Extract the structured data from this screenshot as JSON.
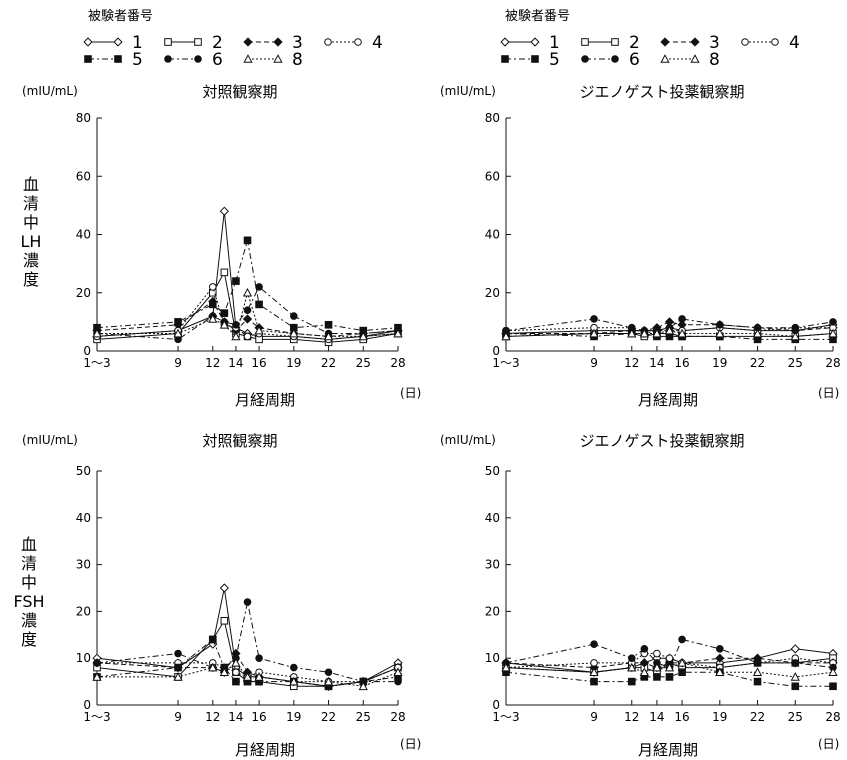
{
  "legends": [
    {
      "title": "被験者番号",
      "entries": [
        {
          "label": "1",
          "marker": "diamond-open"
        },
        {
          "label": "2",
          "marker": "square-open"
        },
        {
          "label": "3",
          "marker": "diamond-filled"
        },
        {
          "label": "4",
          "marker": "circle-open"
        },
        {
          "label": "5",
          "marker": "square-filled"
        },
        {
          "label": "6",
          "marker": "circle-filled"
        },
        {
          "label": "8",
          "marker": "triangle-open"
        }
      ]
    },
    {
      "title": "被験者番号",
      "entries": [
        {
          "label": "1",
          "marker": "diamond-open"
        },
        {
          "label": "2",
          "marker": "square-open"
        },
        {
          "label": "3",
          "marker": "diamond-filled"
        },
        {
          "label": "4",
          "marker": "circle-open"
        },
        {
          "label": "5",
          "marker": "square-filled"
        },
        {
          "label": "6",
          "marker": "circle-filled"
        },
        {
          "label": "8",
          "marker": "triangle-open"
        }
      ]
    }
  ],
  "y_axis_labels": {
    "lh": "血清中LH濃度",
    "fsh": "血清中FSH濃度"
  },
  "chart_data": [
    {
      "type": "line",
      "title": "対照観察期",
      "unit": "(mIU/mL)",
      "xlabel": "月経周期",
      "xunit": "(日)",
      "x_tick_labels": [
        "1〜3",
        "9",
        "12",
        "14",
        "16",
        "19",
        "22",
        "25",
        "28"
      ],
      "x_tick_values": [
        2,
        9,
        12,
        14,
        16,
        19,
        22,
        25,
        28
      ],
      "ylim": [
        0,
        80
      ],
      "y_ticks": [
        0,
        20,
        40,
        60,
        80
      ],
      "series": [
        {
          "name": "1",
          "x": [
            2,
            9,
            12,
            13,
            14,
            15,
            16,
            19,
            22,
            25,
            28
          ],
          "values": [
            5,
            7,
            12,
            48,
            8,
            6,
            5,
            5,
            4,
            5,
            7
          ]
        },
        {
          "name": "2",
          "x": [
            2,
            9,
            12,
            13,
            14,
            15,
            16,
            19,
            22,
            25,
            28
          ],
          "values": [
            4,
            6,
            20,
            27,
            6,
            5,
            4,
            4,
            3,
            4,
            6
          ]
        },
        {
          "name": "3",
          "x": [
            2,
            9,
            12,
            13,
            14,
            15,
            16,
            19,
            22,
            25,
            28
          ],
          "values": [
            7,
            9,
            17,
            10,
            7,
            11,
            8,
            6,
            5,
            6,
            7
          ]
        },
        {
          "name": "4",
          "x": [
            2,
            9,
            12,
            13,
            14,
            15,
            16,
            19,
            22,
            25,
            28
          ],
          "values": [
            5,
            7,
            22,
            9,
            8,
            5,
            6,
            5,
            4,
            5,
            6
          ]
        },
        {
          "name": "5",
          "x": [
            2,
            9,
            12,
            13,
            14,
            15,
            16,
            19,
            22,
            25,
            28
          ],
          "values": [
            8,
            10,
            16,
            13,
            24,
            38,
            16,
            8,
            9,
            7,
            8
          ]
        },
        {
          "name": "6",
          "x": [
            2,
            9,
            12,
            13,
            14,
            15,
            16,
            19,
            22,
            25,
            28
          ],
          "values": [
            6,
            4,
            12,
            10,
            9,
            14,
            22,
            12,
            6,
            6,
            7
          ]
        },
        {
          "name": "8",
          "x": [
            2,
            9,
            12,
            13,
            14,
            15,
            16,
            19,
            22,
            25,
            28
          ],
          "values": [
            6,
            6,
            11,
            9,
            5,
            20,
            7,
            6,
            5,
            5,
            6
          ]
        }
      ]
    },
    {
      "type": "line",
      "title": "ジエノゲスト投薬観察期",
      "unit": "(mIU/mL)",
      "xlabel": "月経周期",
      "xunit": "(日)",
      "x_tick_labels": [
        "1〜3",
        "9",
        "12",
        "14",
        "16",
        "19",
        "22",
        "25",
        "28"
      ],
      "x_tick_values": [
        2,
        9,
        12,
        14,
        16,
        19,
        22,
        25,
        28
      ],
      "ylim": [
        0,
        80
      ],
      "y_ticks": [
        0,
        20,
        40,
        60,
        80
      ],
      "series": [
        {
          "name": "1",
          "x": [
            2,
            9,
            12,
            13,
            14,
            15,
            16,
            19,
            22,
            25,
            28
          ],
          "values": [
            6,
            7,
            7,
            7,
            7,
            8,
            7,
            8,
            7,
            7,
            9
          ]
        },
        {
          "name": "2",
          "x": [
            2,
            9,
            12,
            13,
            14,
            15,
            16,
            19,
            22,
            25,
            28
          ],
          "values": [
            5,
            6,
            6,
            5,
            6,
            6,
            5,
            5,
            5,
            5,
            6
          ]
        },
        {
          "name": "3",
          "x": [
            2,
            9,
            12,
            13,
            14,
            15,
            16,
            19,
            22,
            25,
            28
          ],
          "values": [
            6,
            6,
            7,
            7,
            8,
            10,
            9,
            9,
            8,
            7,
            8
          ]
        },
        {
          "name": "4",
          "x": [
            2,
            9,
            12,
            13,
            14,
            15,
            16,
            19,
            22,
            25,
            28
          ],
          "values": [
            7,
            8,
            8,
            6,
            7,
            7,
            7,
            8,
            7,
            8,
            8
          ]
        },
        {
          "name": "5",
          "x": [
            2,
            9,
            12,
            13,
            14,
            15,
            16,
            19,
            22,
            25,
            28
          ],
          "values": [
            6,
            5,
            6,
            6,
            5,
            5,
            5,
            5,
            4,
            4,
            4
          ]
        },
        {
          "name": "6",
          "x": [
            2,
            9,
            12,
            13,
            14,
            15,
            16,
            19,
            22,
            25,
            28
          ],
          "values": [
            7,
            11,
            8,
            7,
            7,
            8,
            11,
            9,
            8,
            8,
            10
          ]
        },
        {
          "name": "8",
          "x": [
            2,
            9,
            12,
            13,
            14,
            15,
            16,
            19,
            22,
            25,
            28
          ],
          "values": [
            5,
            6,
            6,
            6,
            6,
            7,
            6,
            6,
            6,
            5,
            6
          ]
        }
      ]
    },
    {
      "type": "line",
      "title": "対照観察期",
      "unit": "(mIU/mL)",
      "xlabel": "月経周期",
      "xunit": "(日)",
      "x_tick_labels": [
        "1〜3",
        "9",
        "12",
        "14",
        "16",
        "19",
        "22",
        "25",
        "28"
      ],
      "x_tick_values": [
        2,
        9,
        12,
        14,
        16,
        19,
        22,
        25,
        28
      ],
      "ylim": [
        0,
        50
      ],
      "y_ticks": [
        0,
        10,
        20,
        30,
        40,
        50
      ],
      "series": [
        {
          "name": "1",
          "x": [
            2,
            9,
            12,
            13,
            14,
            15,
            16,
            19,
            22,
            25,
            28
          ],
          "values": [
            10,
            8,
            13,
            25,
            8,
            6,
            6,
            5,
            4,
            5,
            9
          ]
        },
        {
          "name": "2",
          "x": [
            2,
            9,
            12,
            13,
            14,
            15,
            16,
            19,
            22,
            25,
            28
          ],
          "values": [
            8,
            6,
            14,
            18,
            7,
            5,
            5,
            4,
            4,
            5,
            8
          ]
        },
        {
          "name": "3",
          "x": [
            2,
            9,
            12,
            13,
            14,
            15,
            16,
            19,
            22,
            25,
            28
          ],
          "values": [
            9,
            8,
            8,
            7,
            11,
            7,
            6,
            5,
            4,
            5,
            8
          ]
        },
        {
          "name": "4",
          "x": [
            2,
            9,
            12,
            13,
            14,
            15,
            16,
            19,
            22,
            25,
            28
          ],
          "values": [
            9,
            9,
            9,
            8,
            7,
            6,
            7,
            6,
            5,
            5,
            8
          ]
        },
        {
          "name": "5",
          "x": [
            2,
            9,
            12,
            13,
            14,
            15,
            16,
            19,
            22,
            25,
            28
          ],
          "values": [
            6,
            8,
            14,
            8,
            5,
            5,
            5,
            5,
            4,
            5,
            6
          ]
        },
        {
          "name": "6",
          "x": [
            2,
            9,
            12,
            13,
            14,
            15,
            16,
            19,
            22,
            25,
            28
          ],
          "values": [
            9,
            11,
            8,
            8,
            10,
            22,
            10,
            8,
            7,
            5,
            5
          ]
        },
        {
          "name": "8",
          "x": [
            2,
            9,
            12,
            13,
            14,
            15,
            16,
            19,
            22,
            25,
            28
          ],
          "values": [
            6,
            6,
            8,
            7,
            9,
            6,
            6,
            5,
            5,
            4,
            7
          ]
        }
      ]
    },
    {
      "type": "line",
      "title": "ジエノゲスト投薬観察期",
      "unit": "(mIU/mL)",
      "xlabel": "月経周期",
      "xunit": "(日)",
      "x_tick_labels": [
        "1〜3",
        "9",
        "12",
        "14",
        "16",
        "19",
        "22",
        "25",
        "28"
      ],
      "x_tick_values": [
        2,
        9,
        12,
        14,
        16,
        19,
        22,
        25,
        28
      ],
      "ylim": [
        0,
        50
      ],
      "y_ticks": [
        0,
        10,
        20,
        30,
        40,
        50
      ],
      "series": [
        {
          "name": "1",
          "x": [
            2,
            9,
            12,
            13,
            14,
            15,
            16,
            19,
            22,
            25,
            28
          ],
          "values": [
            9,
            7,
            8,
            9,
            10,
            10,
            9,
            9,
            10,
            12,
            11
          ]
        },
        {
          "name": "2",
          "x": [
            2,
            9,
            12,
            13,
            14,
            15,
            16,
            19,
            22,
            25,
            28
          ],
          "values": [
            8,
            7,
            8,
            8,
            7,
            9,
            8,
            8,
            9,
            9,
            10
          ]
        },
        {
          "name": "3",
          "x": [
            2,
            9,
            12,
            13,
            14,
            15,
            16,
            19,
            22,
            25,
            28
          ],
          "values": [
            9,
            8,
            9,
            9,
            8,
            9,
            9,
            10,
            10,
            9,
            9
          ]
        },
        {
          "name": "4",
          "x": [
            2,
            9,
            12,
            13,
            14,
            15,
            16,
            19,
            22,
            25,
            28
          ],
          "values": [
            8,
            9,
            9,
            11,
            11,
            10,
            9,
            8,
            9,
            10,
            9
          ]
        },
        {
          "name": "5",
          "x": [
            2,
            9,
            12,
            13,
            14,
            15,
            16,
            19,
            22,
            25,
            28
          ],
          "values": [
            7,
            5,
            5,
            6,
            6,
            6,
            7,
            7,
            5,
            4,
            4
          ]
        },
        {
          "name": "6",
          "x": [
            2,
            9,
            12,
            13,
            14,
            15,
            16,
            19,
            22,
            25,
            28
          ],
          "values": [
            9,
            13,
            10,
            12,
            9,
            8,
            14,
            12,
            9,
            9,
            8
          ]
        },
        {
          "name": "8",
          "x": [
            2,
            9,
            12,
            13,
            14,
            15,
            16,
            19,
            22,
            25,
            28
          ],
          "values": [
            8,
            7,
            8,
            7,
            8,
            8,
            9,
            7,
            7,
            6,
            7
          ]
        }
      ]
    }
  ]
}
